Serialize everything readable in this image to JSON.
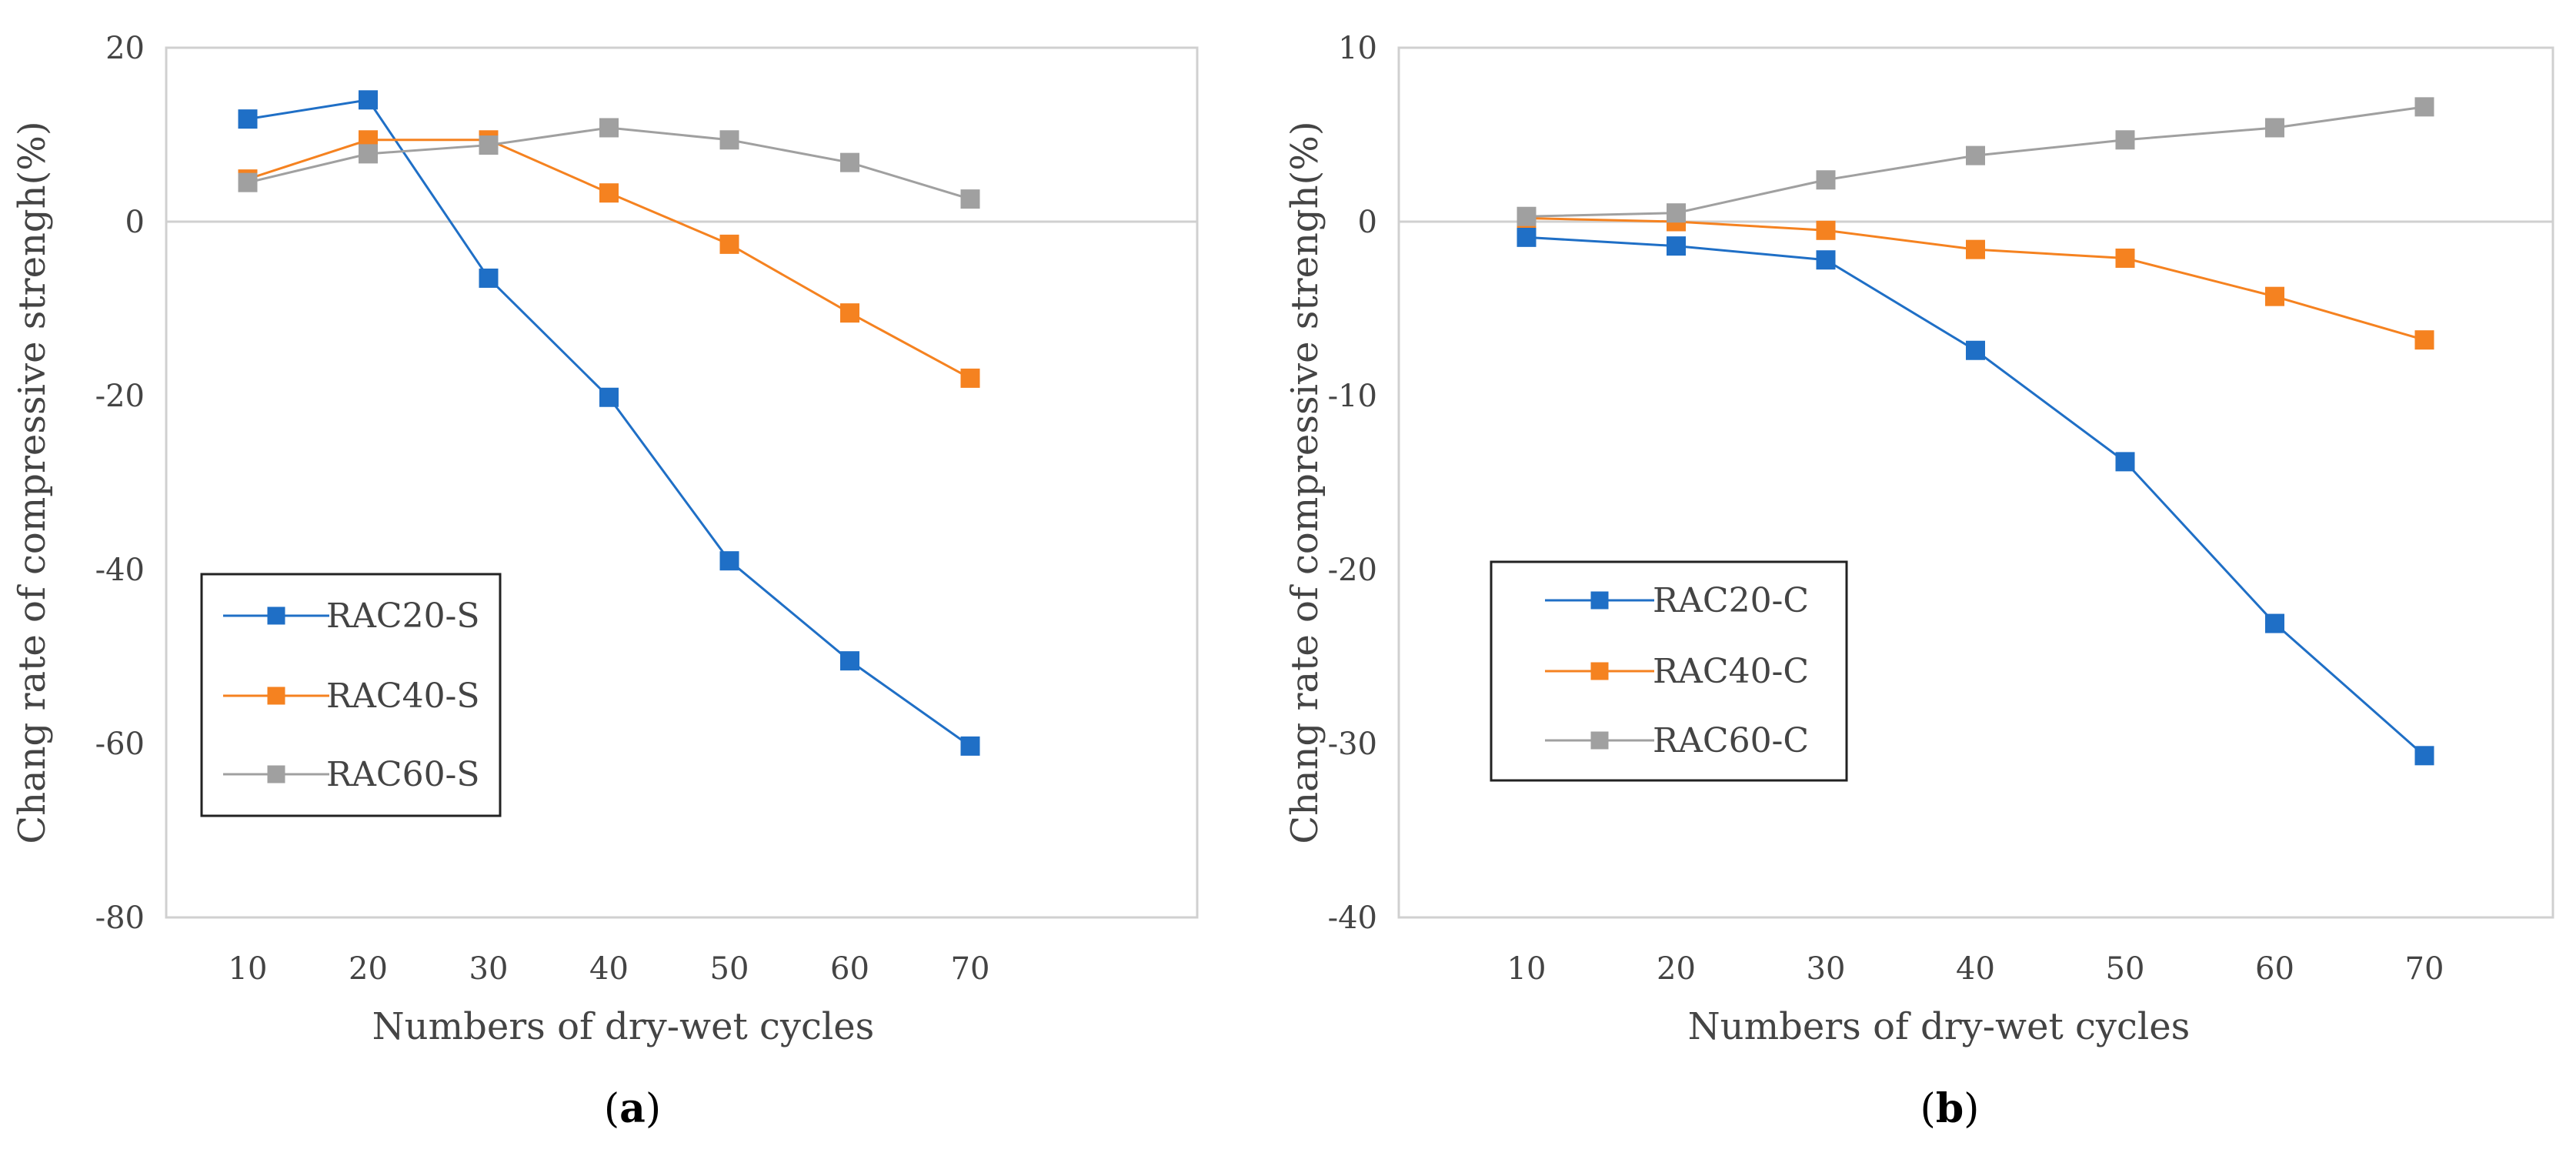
{
  "chart_data": [
    {
      "type": "line",
      "panel_label": "a",
      "xlabel": "Numbers of dry-wet cycles",
      "ylabel": "Chang rate of compressive strengh(%)",
      "x": [
        10,
        20,
        30,
        40,
        50,
        60,
        70
      ],
      "x_tick_labels": [
        "10",
        "20",
        "30",
        "40",
        "50",
        "60",
        "70"
      ],
      "ylim": [
        -80,
        20
      ],
      "y_ticks": [
        20,
        0,
        -20,
        -40,
        -60,
        -80
      ],
      "y_tick_labels": [
        "20",
        "0",
        "-20",
        "-40",
        "-60",
        "-80"
      ],
      "grid": false,
      "legend_position": "lower-left",
      "series": [
        {
          "name": "RAC20-S",
          "color": "#1f6fc6",
          "values": [
            11.8,
            14.0,
            -6.5,
            -20.2,
            -39.0,
            -50.5,
            -60.3
          ]
        },
        {
          "name": "RAC40-S",
          "color": "#f58220",
          "values": [
            4.9,
            9.4,
            9.4,
            3.3,
            -2.6,
            -10.5,
            -18.0
          ]
        },
        {
          "name": "RAC60-S",
          "color": "#a0a0a0",
          "values": [
            4.5,
            7.8,
            8.8,
            10.8,
            9.4,
            6.8,
            2.6
          ]
        }
      ]
    },
    {
      "type": "line",
      "panel_label": "b",
      "xlabel": "Numbers of dry-wet cycles",
      "ylabel": "Chang rate of compressive strengh(%)",
      "x": [
        10,
        20,
        30,
        40,
        50,
        60,
        70
      ],
      "x_tick_labels": [
        "10",
        "20",
        "30",
        "40",
        "50",
        "60",
        "70"
      ],
      "ylim": [
        -40,
        10
      ],
      "y_ticks": [
        10,
        0,
        -10,
        -20,
        -30,
        -40
      ],
      "y_tick_labels": [
        "10",
        "0",
        "-10",
        "-20",
        "-30",
        "-40"
      ],
      "grid": false,
      "legend_position": "lower-left",
      "series": [
        {
          "name": "RAC20-C",
          "color": "#1f6fc6",
          "values": [
            -0.9,
            -1.4,
            -2.2,
            -7.4,
            -13.8,
            -23.1,
            -30.7
          ]
        },
        {
          "name": "RAC40-C",
          "color": "#f58220",
          "values": [
            0.2,
            0.0,
            -0.5,
            -1.6,
            -2.1,
            -4.3,
            -6.8
          ]
        },
        {
          "name": "RAC60-C",
          "color": "#a0a0a0",
          "values": [
            0.3,
            0.5,
            2.4,
            3.8,
            4.7,
            5.4,
            6.6
          ]
        }
      ]
    }
  ]
}
